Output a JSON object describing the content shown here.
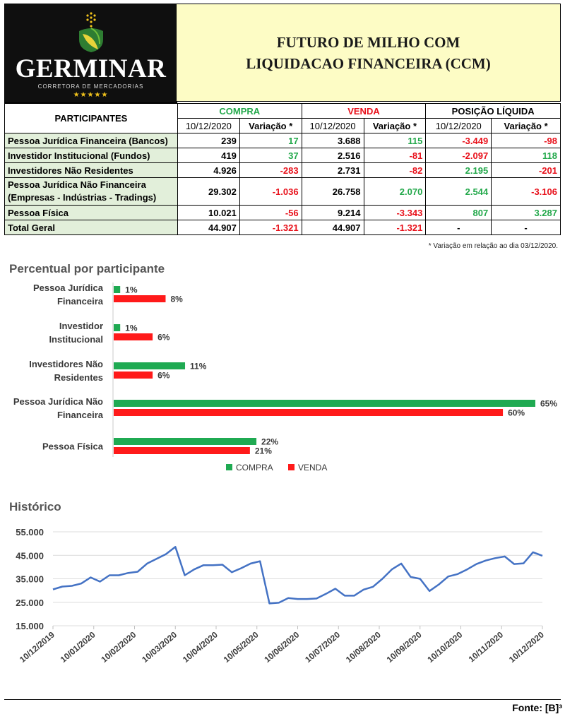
{
  "brand": {
    "name": "GERMINAR",
    "subtitle": "CORRETORA DE MERCADORIAS",
    "stars": "★★★★★"
  },
  "title_lines": [
    "FUTURO DE MILHO COM",
    "LIQUIDACAO FINANCEIRA (CCM)"
  ],
  "table": {
    "participants_header": "PARTICIPANTES",
    "groups": [
      "COMPRA",
      "VENDA",
      "POSIÇÃO LÍQUIDA"
    ],
    "subheaders": [
      "10/12/2020",
      "Variação *",
      "10/12/2020",
      "Variação *",
      "10/12/2020",
      "Variação *"
    ],
    "rows": [
      {
        "label": "Pessoa Jurídica Financeira (Bancos)",
        "compra": "239",
        "compra_var": "17",
        "venda": "3.688",
        "venda_var": "115",
        "pos": "-3.449",
        "pos_var": "-98"
      },
      {
        "label": "Investidor Institucional (Fundos)",
        "compra": "419",
        "compra_var": "37",
        "venda": "2.516",
        "venda_var": "-81",
        "pos": "-2.097",
        "pos_var": "118"
      },
      {
        "label": "Investidores Não Residentes",
        "compra": "4.926",
        "compra_var": "-283",
        "venda": "2.731",
        "venda_var": "-82",
        "pos": "2.195",
        "pos_var": "-201"
      },
      {
        "label": "Pessoa Jurídica Não Financeira",
        "label2": "(Empresas - Indústrias - Tradings)",
        "compra": "29.302",
        "compra_var": "-1.036",
        "venda": "26.758",
        "venda_var": "2.070",
        "pos": "2.544",
        "pos_var": "-3.106"
      },
      {
        "label": "Pessoa Física",
        "compra": "10.021",
        "compra_var": "-56",
        "venda": "9.214",
        "venda_var": "-3.343",
        "pos": "807",
        "pos_var": "3.287"
      },
      {
        "label": "Total Geral",
        "compra": "44.907",
        "compra_var": "-1.321",
        "venda": "44.907",
        "venda_var": "-1.321",
        "pos": "-",
        "pos_var": "-"
      }
    ]
  },
  "footnote": "* Variação em relação ao dia 03/12/2020.",
  "source": "Fonte: [B]³",
  "colors": {
    "green": "#22a84a",
    "red": "#e8101a",
    "compra": "#1faa52",
    "venda": "#ff1a1a",
    "line": "#4472c4",
    "label_bg": "#e2efda",
    "title_bg": "#fdfcc5"
  },
  "chart_data": [
    {
      "type": "bar",
      "orientation": "horizontal",
      "title": "Percentual por participante",
      "categories": [
        [
          "Pessoa Jurídica",
          "Financeira"
        ],
        [
          "Investidor",
          "Institucional"
        ],
        [
          "Investidores Não",
          "Residentes"
        ],
        [
          "Pessoa Jurídica Não",
          "Financeira"
        ],
        [
          "Pessoa Física"
        ]
      ],
      "series": [
        {
          "name": "COMPRA",
          "values": [
            1,
            1,
            11,
            65,
            22
          ],
          "labels": [
            "1%",
            "1%",
            "11%",
            "65%",
            "22%"
          ]
        },
        {
          "name": "VENDA",
          "values": [
            8,
            6,
            6,
            60,
            21
          ],
          "labels": [
            "8%",
            "6%",
            "6%",
            "60%",
            "21%"
          ]
        }
      ],
      "legend": "bottom"
    },
    {
      "type": "line",
      "title": "Histórico",
      "x_ticks": [
        "10/12/2019",
        "10/01/2020",
        "10/02/2020",
        "10/03/2020",
        "10/04/2020",
        "10/05/2020",
        "10/06/2020",
        "10/07/2020",
        "10/08/2020",
        "10/09/2020",
        "10/10/2020",
        "10/11/2020",
        "10/12/2020"
      ],
      "y_ticks": [
        "15.000",
        "25.000",
        "35.000",
        "45.000",
        "55.000"
      ],
      "ylim": [
        15000,
        55000
      ],
      "values": [
        30500,
        31700,
        32000,
        33000,
        35600,
        33800,
        36500,
        36500,
        37500,
        38000,
        41500,
        43500,
        45500,
        48600,
        36500,
        39000,
        40800,
        40800,
        41000,
        37800,
        39500,
        41500,
        42500,
        24500,
        24800,
        26800,
        26400,
        26400,
        26600,
        28600,
        30800,
        27800,
        27800,
        30400,
        31600,
        35000,
        39000,
        41500,
        35800,
        35000,
        29800,
        32600,
        36000,
        37000,
        39000,
        41300,
        42800,
        43800,
        44500,
        41300,
        41600,
        46300,
        44800
      ]
    }
  ]
}
